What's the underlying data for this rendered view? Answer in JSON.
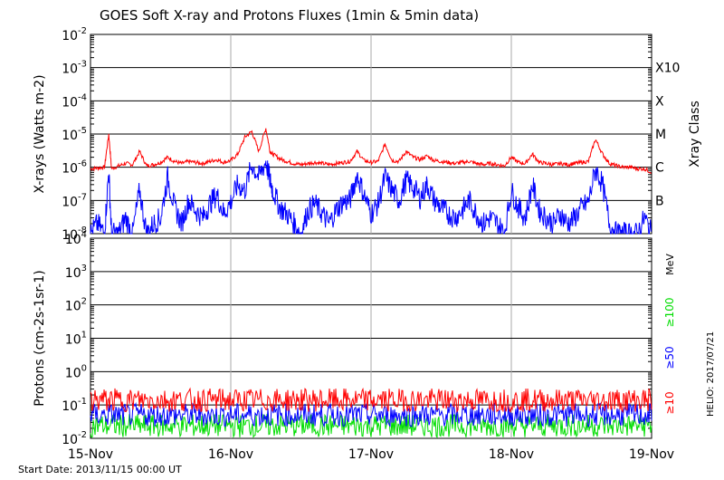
{
  "title": "GOES Soft X-ray and Protons Fluxes   (1min & 5min data)",
  "footer": {
    "start_date": "Start Date: 2013/11/15 00:00 UT",
    "credit": "HELIO: 2017/07/21"
  },
  "colors": {
    "xray_long": "#ff0000",
    "xray_short": "#0000ff",
    "proton_10": "#ff0000",
    "proton_50": "#0000ff",
    "proton_100": "#00dd00",
    "grid_day": "#aaaaaa"
  },
  "chart_data": [
    {
      "type": "line",
      "panel": "xrays",
      "ylabel": "X-rays (Watts m-2)",
      "yscale": "log",
      "ylim": [
        1e-08,
        0.01
      ],
      "ytick_labels": [
        "10-8",
        "10-7",
        "10-6",
        "10-5",
        "10-4",
        "10-3",
        "10-2"
      ],
      "right_axis_title": "Xray Class",
      "class_labels": [
        {
          "label": "B",
          "y": 1e-07
        },
        {
          "label": "C",
          "y": 1e-06
        },
        {
          "label": "M",
          "y": 1e-05
        },
        {
          "label": "X",
          "y": 0.0001
        },
        {
          "label": "X10",
          "y": 0.001
        }
      ],
      "x_tick_labels": [
        "15-Nov",
        "16-Nov",
        "17-Nov",
        "18-Nov",
        "19-Nov"
      ],
      "xlim_days": [
        0,
        4
      ],
      "series": [
        {
          "color": "red",
          "x": [
            0,
            0.05,
            0.1,
            0.13,
            0.15,
            0.2,
            0.25,
            0.3,
            0.35,
            0.4,
            0.45,
            0.5,
            0.55,
            0.6,
            0.65,
            0.7,
            0.75,
            0.8,
            0.85,
            0.9,
            0.95,
            1.0,
            1.05,
            1.1,
            1.15,
            1.2,
            1.25,
            1.28,
            1.3,
            1.35,
            1.4,
            1.45,
            1.5,
            1.55,
            1.6,
            1.65,
            1.7,
            1.75,
            1.8,
            1.85,
            1.9,
            1.95,
            2.0,
            2.05,
            2.1,
            2.15,
            2.2,
            2.25,
            2.3,
            2.35,
            2.4,
            2.45,
            2.5,
            2.55,
            2.6,
            2.65,
            2.7,
            2.75,
            2.8,
            2.85,
            2.9,
            2.95,
            3.0,
            3.05,
            3.1,
            3.15,
            3.2,
            3.25,
            3.3,
            3.35,
            3.4,
            3.45,
            3.5,
            3.55,
            3.6,
            3.65,
            3.7,
            3.75,
            3.8,
            3.85,
            3.9,
            3.95,
            4.0
          ],
          "y": [
            9e-07,
            9.5e-07,
            1e-06,
            1e-05,
            9e-07,
            1.1e-06,
            1.3e-06,
            1.2e-06,
            3e-06,
            1.1e-06,
            1.2e-06,
            1.4e-06,
            2e-06,
            1.5e-06,
            1.3e-06,
            1.5e-06,
            1.4e-06,
            1.3e-06,
            1.5e-06,
            1.7e-06,
            1.4e-06,
            1.6e-06,
            2.5e-06,
            8e-06,
            1.2e-05,
            3e-06,
            1.5e-05,
            3e-06,
            2.5e-06,
            1.8e-06,
            1.5e-06,
            1.3e-06,
            1.2e-06,
            1.3e-06,
            1.4e-06,
            1.3e-06,
            1.2e-06,
            1.3e-06,
            1.4e-06,
            1.5e-06,
            3e-06,
            1.6e-06,
            1.4e-06,
            1.5e-06,
            5e-06,
            1.6e-06,
            1.5e-06,
            3e-06,
            2e-06,
            1.7e-06,
            2.2e-06,
            1.6e-06,
            1.5e-06,
            1.4e-06,
            1.3e-06,
            1.4e-06,
            1.5e-06,
            1.3e-06,
            1.2e-06,
            1.3e-06,
            1.2e-06,
            1.1e-06,
            2e-06,
            1.4e-06,
            1.3e-06,
            2.5e-06,
            1.4e-06,
            1.3e-06,
            1.2e-06,
            1.3e-06,
            1.2e-06,
            1.3e-06,
            1.4e-06,
            1.5e-06,
            7e-06,
            2.5e-06,
            1.3e-06,
            1.1e-06,
            1e-06,
            1e-06,
            9e-07,
            9e-07,
            7e-07
          ]
        },
        {
          "color": "blue",
          "x": [
            0,
            0.05,
            0.1,
            0.13,
            0.15,
            0.2,
            0.25,
            0.3,
            0.35,
            0.4,
            0.45,
            0.5,
            0.55,
            0.6,
            0.65,
            0.7,
            0.75,
            0.8,
            0.85,
            0.9,
            0.95,
            1.0,
            1.05,
            1.1,
            1.15,
            1.2,
            1.25,
            1.28,
            1.3,
            1.35,
            1.4,
            1.45,
            1.5,
            1.55,
            1.6,
            1.65,
            1.7,
            1.75,
            1.8,
            1.85,
            1.9,
            1.95,
            2.0,
            2.05,
            2.1,
            2.15,
            2.2,
            2.25,
            2.3,
            2.35,
            2.4,
            2.45,
            2.5,
            2.55,
            2.6,
            2.65,
            2.7,
            2.75,
            2.8,
            2.85,
            2.9,
            2.95,
            3.0,
            3.05,
            3.1,
            3.15,
            3.2,
            3.25,
            3.3,
            3.35,
            3.4,
            3.45,
            3.5,
            3.55,
            3.6,
            3.65,
            3.7,
            3.75,
            3.8,
            3.85,
            3.9,
            3.95,
            4.0
          ],
          "y": [
            1e-08,
            2e-08,
            1e-08,
            8e-07,
            1e-08,
            1e-08,
            3e-08,
            1e-08,
            2e-07,
            1e-08,
            2e-08,
            3e-08,
            5e-07,
            6e-08,
            2e-08,
            1e-07,
            5e-08,
            3e-08,
            8e-08,
            1.5e-07,
            4e-08,
            9e-08,
            3e-07,
            2e-07,
            1.2e-06,
            5e-07,
            1.5e-06,
            4e-07,
            2e-07,
            6e-08,
            4e-08,
            2e-08,
            1e-08,
            5e-08,
            8e-08,
            4e-08,
            2e-08,
            5e-08,
            9e-08,
            1e-07,
            6e-07,
            1.5e-07,
            4e-08,
            8e-08,
            5e-07,
            2e-07,
            1e-07,
            4e-07,
            2.5e-07,
            1.2e-07,
            3e-07,
            1e-07,
            6e-08,
            4e-08,
            3e-08,
            5e-08,
            1e-07,
            4e-08,
            2e-08,
            3e-08,
            2e-08,
            1e-08,
            2e-07,
            6e-08,
            3e-08,
            3e-07,
            5e-08,
            3e-08,
            2e-08,
            4e-08,
            2e-08,
            3e-08,
            6e-08,
            9e-08,
            9e-07,
            3e-07,
            2e-08,
            1e-08,
            1e-08,
            1e-08,
            1e-08,
            3e-08,
            1e-08
          ]
        }
      ]
    },
    {
      "type": "line",
      "panel": "protons",
      "ylabel": "Protons (cm-2s-1sr-1)",
      "yscale": "log",
      "ylim": [
        0.01,
        10000
      ],
      "ytick_labels": [
        "10-2",
        "10-1",
        "100",
        "101",
        "102",
        "103",
        "104"
      ],
      "dashed_level": 10,
      "right_unit": "MeV",
      "x_tick_labels": [
        "15-Nov",
        "16-Nov",
        "17-Nov",
        "18-Nov",
        "19-Nov"
      ],
      "xlim_days": [
        0,
        4
      ],
      "series": [
        {
          "name": "≥10",
          "color": "red",
          "level": 0.14,
          "noise": 0.35
        },
        {
          "name": "≥50",
          "color": "blue",
          "level": 0.05,
          "noise": 0.35
        },
        {
          "name": "≥100",
          "color": "green",
          "level": 0.024,
          "noise": 0.35
        }
      ]
    }
  ]
}
